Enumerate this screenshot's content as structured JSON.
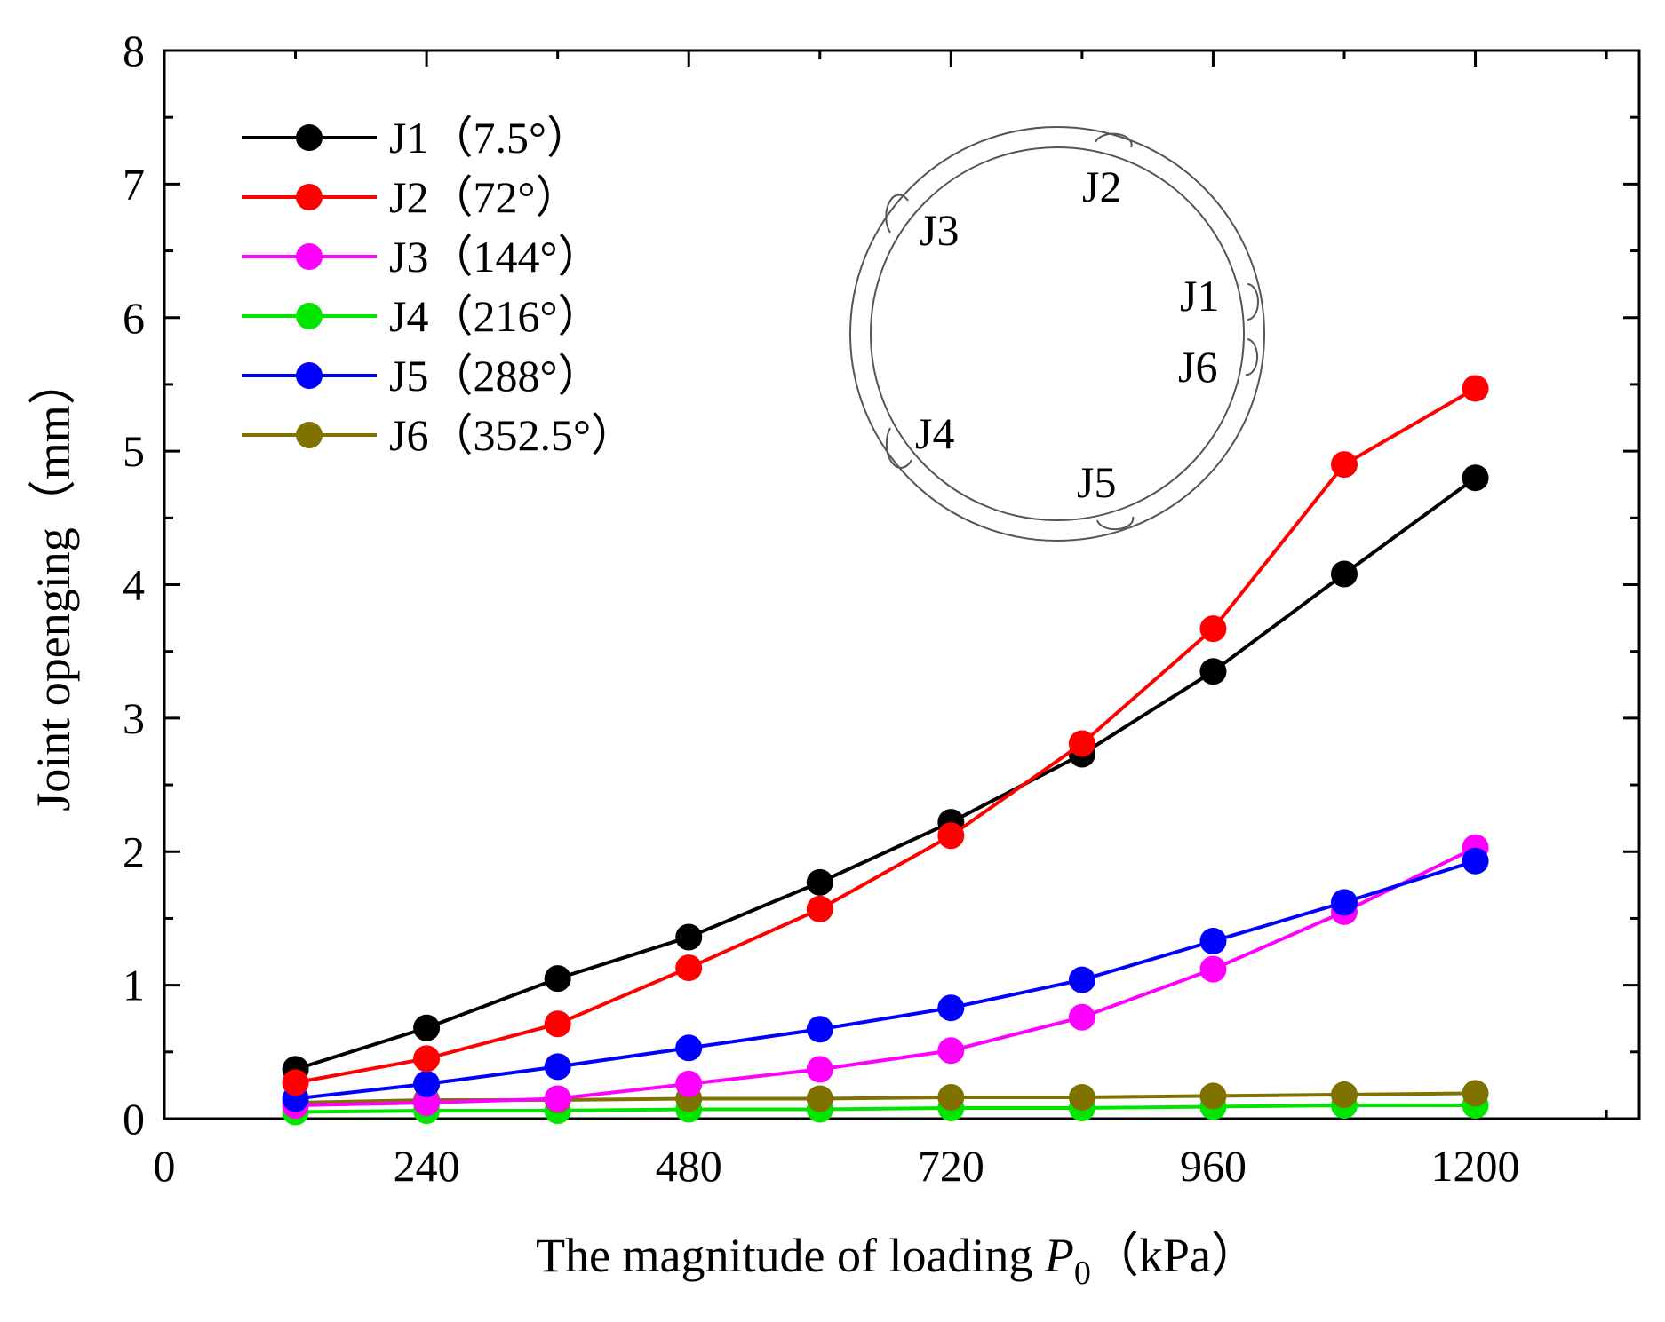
{
  "chart_data": {
    "type": "line",
    "title": "",
    "xlabel": "The magnitude of loading ",
    "xlabel_symbol": "P",
    "xlabel_subscript": "0",
    "xlabel_unit": "（kPa）",
    "ylabel": "Joint openging（mm）",
    "xlim": [
      0,
      1350
    ],
    "ylim": [
      0,
      8
    ],
    "xticks": [
      0,
      240,
      480,
      720,
      960,
      1200
    ],
    "yticks": [
      0,
      1,
      2,
      3,
      4,
      5,
      6,
      7,
      8
    ],
    "grid": false,
    "legend_position": "top-left",
    "x": [
      120,
      240,
      360,
      480,
      600,
      720,
      840,
      960,
      1080,
      1200
    ],
    "series": [
      {
        "name": "J1（7.5°）",
        "color": "#000000",
        "values": [
          0.37,
          0.68,
          1.05,
          1.36,
          1.77,
          2.22,
          2.73,
          3.35,
          4.08,
          4.8
        ]
      },
      {
        "name": "J2（72°）",
        "color": "#ff0000",
        "values": [
          0.27,
          0.45,
          0.71,
          1.13,
          1.57,
          2.12,
          2.81,
          3.67,
          4.9,
          5.47
        ]
      },
      {
        "name": "J3（144°）",
        "color": "#ff00ff",
        "values": [
          0.1,
          0.12,
          0.15,
          0.26,
          0.37,
          0.51,
          0.76,
          1.12,
          1.55,
          2.03
        ]
      },
      {
        "name": "J4（216°）",
        "color": "#00e600",
        "values": [
          0.05,
          0.06,
          0.06,
          0.07,
          0.07,
          0.08,
          0.08,
          0.09,
          0.1,
          0.1
        ]
      },
      {
        "name": "J5（288°）",
        "color": "#0000ff",
        "values": [
          0.15,
          0.26,
          0.39,
          0.53,
          0.67,
          0.83,
          1.04,
          1.33,
          1.62,
          1.93
        ]
      },
      {
        "name": "J6（352.5°）",
        "color": "#7f7200",
        "values": [
          0.12,
          0.14,
          0.14,
          0.15,
          0.15,
          0.16,
          0.16,
          0.17,
          0.18,
          0.19
        ]
      }
    ],
    "inset": {
      "description_type": "ring schematic with joint positions",
      "labels": [
        "J1",
        "J2",
        "J3",
        "J4",
        "J5",
        "J6"
      ]
    }
  }
}
